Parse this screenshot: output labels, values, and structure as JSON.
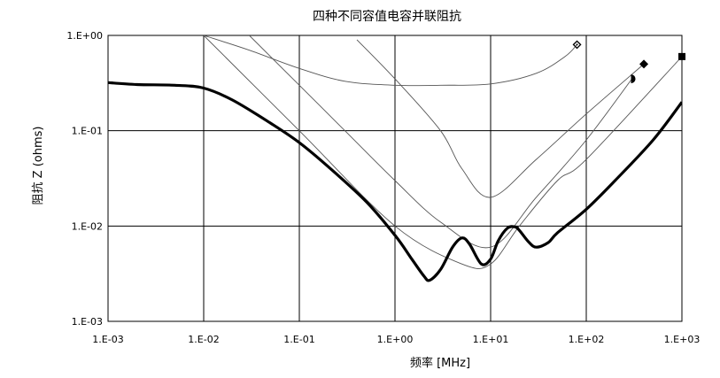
{
  "chart_data": {
    "type": "line",
    "title": "四种不同容值电容并联阻抗",
    "xlabel": "频率    [MHz]",
    "ylabel": "阻抗  Z (ohms)",
    "x_scale": "log",
    "y_scale": "log",
    "xlim": [
      0.001,
      1000
    ],
    "ylim": [
      0.001,
      1
    ],
    "x_ticks": [
      "1.E-03",
      "1.E-02",
      "1.E-01",
      "1.E+00",
      "1.E+01",
      "1.E+02",
      "1.E+03"
    ],
    "y_ticks": [
      "1.E+00",
      "1.E-01",
      "1.E-02",
      "1.E-03"
    ],
    "grid": true,
    "series": [
      {
        "style": "thin",
        "marker": "diamond-outline",
        "x": [
          0.01,
          0.03,
          0.1,
          0.3,
          1,
          3,
          10,
          30,
          60,
          80
        ],
        "y": [
          1.0,
          0.7,
          0.45,
          0.33,
          0.3,
          0.3,
          0.31,
          0.4,
          0.6,
          0.8
        ]
      },
      {
        "style": "thin",
        "marker": "half-circle",
        "x": [
          0.03,
          0.1,
          0.3,
          1,
          3,
          10,
          30,
          100,
          300
        ],
        "y": [
          1.0,
          0.3,
          0.1,
          0.03,
          0.011,
          0.006,
          0.02,
          0.08,
          0.35
        ]
      },
      {
        "style": "thin",
        "marker": "diamond",
        "x": [
          0.4,
          1,
          3,
          5,
          10,
          30,
          100,
          400
        ],
        "y": [
          0.9,
          0.35,
          0.1,
          0.04,
          0.02,
          0.05,
          0.15,
          0.5
        ]
      },
      {
        "style": "thin",
        "marker": "square",
        "x": [
          0.01,
          0.1,
          1,
          5,
          10,
          20,
          50,
          100,
          1000
        ],
        "y": [
          1.0,
          0.1,
          0.01,
          0.004,
          0.004,
          0.01,
          0.03,
          0.05,
          0.6
        ]
      },
      {
        "style": "thick",
        "x": [
          0.001,
          0.002,
          0.005,
          0.01,
          0.02,
          0.05,
          0.1,
          0.2,
          0.5,
          1,
          1.5,
          2,
          2.3,
          3,
          4,
          5,
          6,
          8,
          10,
          12,
          15,
          18,
          20,
          25,
          30,
          40,
          50,
          100,
          200,
          500,
          1000
        ],
        "y": [
          0.32,
          0.305,
          0.3,
          0.28,
          0.21,
          0.12,
          0.075,
          0.042,
          0.018,
          0.008,
          0.0045,
          0.003,
          0.0027,
          0.0035,
          0.006,
          0.0075,
          0.0065,
          0.004,
          0.0045,
          0.007,
          0.0095,
          0.0098,
          0.009,
          0.0068,
          0.006,
          0.0067,
          0.0085,
          0.015,
          0.03,
          0.08,
          0.2
        ]
      }
    ]
  }
}
